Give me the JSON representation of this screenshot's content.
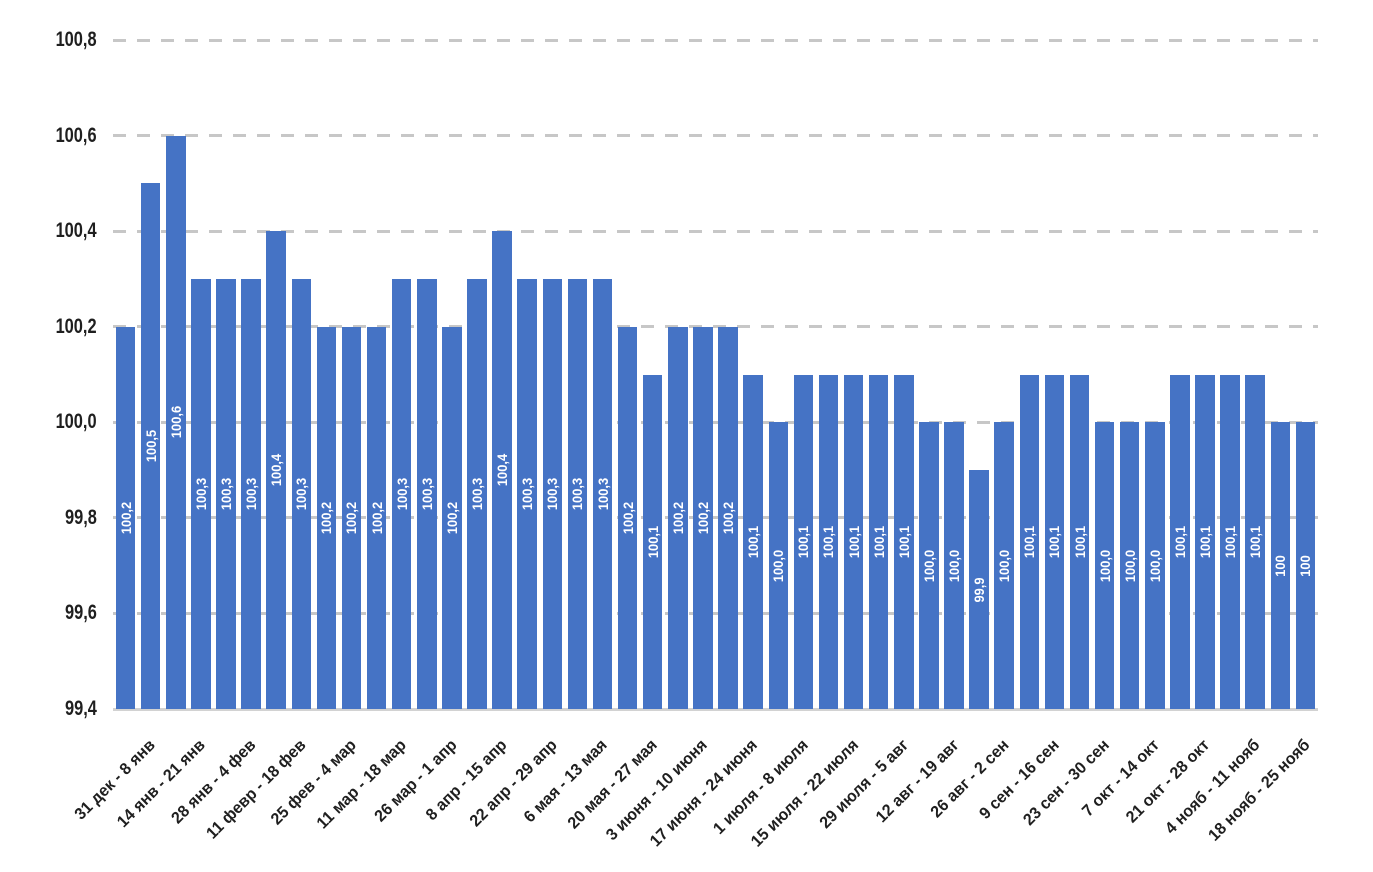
{
  "chart_data": {
    "type": "bar",
    "bars_per_x_label": 2,
    "x_tick_labels": [
      "31 дек - 8 янв",
      "14 янв - 21 янв",
      "28 янв - 4 фев",
      "11 февр - 18 фев",
      "25 фев - 4 мар",
      "11 мар - 18 мар",
      "26 мар - 1 апр",
      "8 апр - 15 апр",
      "22 апр - 29 апр",
      "6 мая - 13 мая",
      "20 мая - 27 мая",
      "3 июня - 10 июня",
      "17 июня - 24 июня",
      "1 июля - 8 июля",
      "15 июля - 22 июля",
      "29 июля - 5 авг",
      "12 авг - 19 авг",
      "26 авг - 2 сен",
      "9 сен - 16 сен",
      "23 сен - 30 сен",
      "7 окт - 14 окт",
      "21 окт - 28 окт",
      "4 нояб - 11 нояб",
      "18 нояб - 25 нояб"
    ],
    "values": [
      100.2,
      100.5,
      100.6,
      100.3,
      100.3,
      100.3,
      100.4,
      100.3,
      100.2,
      100.2,
      100.2,
      100.3,
      100.3,
      100.2,
      100.3,
      100.4,
      100.3,
      100.3,
      100.3,
      100.3,
      100.2,
      100.1,
      100.2,
      100.2,
      100.2,
      100.1,
      100.0,
      100.1,
      100.1,
      100.1,
      100.1,
      100.1,
      100.0,
      100.0,
      99.9,
      100.0,
      100.1,
      100.1,
      100.1,
      100.0,
      100.0,
      100.0,
      100.1,
      100.1,
      100.1,
      100.1,
      100.0,
      100.0
    ],
    "bar_value_labels": [
      "100,2",
      "100,5",
      "100,6",
      "100,3",
      "100,3",
      "100,3",
      "100,4",
      "100,3",
      "100,2",
      "100,2",
      "100,2",
      "100,3",
      "100,3",
      "100,2",
      "100,3",
      "100,4",
      "100,3",
      "100,3",
      "100,3",
      "100,3",
      "100,2",
      "100,1",
      "100,2",
      "100,2",
      "100,2",
      "100,1",
      "100,0",
      "100,1",
      "100,1",
      "100,1",
      "100,1",
      "100,1",
      "100,0",
      "100,0",
      "99,9",
      "100,0",
      "100,1",
      "100,1",
      "100,1",
      "100,0",
      "100,0",
      "100,0",
      "100,1",
      "100,1",
      "100,1",
      "100,1",
      "100",
      "100"
    ],
    "y_tick_labels": [
      "100,8",
      "100,6",
      "100,4",
      "100,2",
      "100,0",
      "99,8",
      "99,6",
      "99,4"
    ],
    "ylim": [
      99.4,
      100.8
    ],
    "grid": "horizontal-dashed",
    "legend": "none",
    "colors": {
      "bar": "#4573C5",
      "bar_label": "#FFFFFF",
      "axis_text": "#1F1F1F",
      "gridline": "#C7C7C7",
      "baseline": "#D2D2D2",
      "background": "#FFFFFF"
    }
  }
}
